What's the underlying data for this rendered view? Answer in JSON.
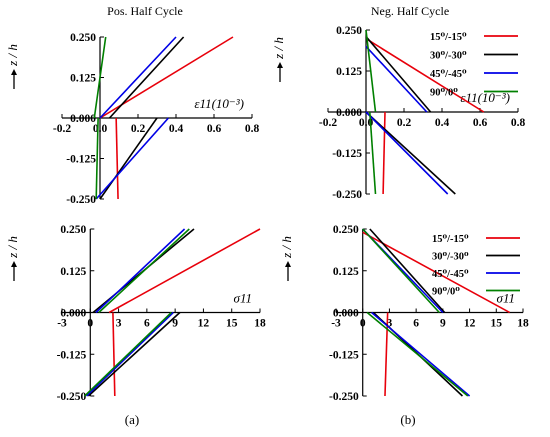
{
  "column_titles": {
    "left": "Pos. Half Cycle",
    "right": "Neg. Half Cycle"
  },
  "captions": {
    "left": "(a)",
    "right": "(b)"
  },
  "legend_panels": [
    1,
    3
  ],
  "legend_entries": [
    {
      "name": "15⁰/-15⁰",
      "color": "#e8000b"
    },
    {
      "name": "30⁰/-30⁰",
      "color": "#000000"
    },
    {
      "name": "45⁰/-45⁰",
      "color": "#0000e6"
    },
    {
      "name": "90⁰/0⁰",
      "color": "#008000"
    }
  ],
  "chart_data": [
    {
      "type": "line",
      "panel": "top-left",
      "xlabel": "ε11(10⁻³)",
      "ylabel": "z / h",
      "xlim": [
        -0.2,
        0.8
      ],
      "ylim": [
        -0.25,
        0.25
      ],
      "xticks": [
        "-0.2",
        "0.0",
        "0.2",
        "0.4",
        "0.6",
        "0.8"
      ],
      "yticks": [
        "0.250",
        "0.125",
        "0.000",
        "-0.125",
        "-0.250"
      ],
      "series": [
        {
          "name": "15⁰/-15⁰",
          "color": "#e8000b",
          "segments": [
            [
              [
                0.0,
                0.0
              ],
              [
                0.7,
                0.25
              ]
            ],
            [
              [
                0.095,
                -0.25
              ],
              [
                0.085,
                0.0
              ]
            ]
          ]
        },
        {
          "name": "30⁰/-30⁰",
          "color": "#000000",
          "segments": [
            [
              [
                0.05,
                0.0
              ],
              [
                0.44,
                0.25
              ]
            ],
            [
              [
                0.0,
                -0.25
              ],
              [
                0.3,
                0.0
              ]
            ]
          ]
        },
        {
          "name": "45⁰/-45⁰",
          "color": "#0000e6",
          "segments": [
            [
              [
                0.0,
                0.0
              ],
              [
                0.4,
                0.25
              ]
            ],
            [
              [
                -0.02,
                -0.25
              ],
              [
                0.36,
                0.0
              ]
            ]
          ]
        },
        {
          "name": "90⁰/0⁰",
          "color": "#008000",
          "segments": [
            [
              [
                -0.03,
                0.0
              ],
              [
                0.03,
                0.25
              ]
            ],
            [
              [
                -0.02,
                -0.25
              ],
              [
                -0.01,
                0.0
              ]
            ]
          ]
        }
      ]
    },
    {
      "type": "line",
      "panel": "top-right",
      "xlabel": "ε11(10⁻³)",
      "ylabel": "z / h",
      "xlim": [
        -0.2,
        0.8
      ],
      "ylim": [
        -0.25,
        0.25
      ],
      "xticks": [
        "-0.2",
        "0.0",
        "0.2",
        "0.4",
        "0.6",
        "0.8"
      ],
      "yticks": [
        "0.250",
        "0.125",
        "0.000",
        "-0.125",
        "-0.250"
      ],
      "series": [
        {
          "name": "15⁰/-15⁰",
          "color": "#e8000b",
          "segments": [
            [
              [
                0.01,
                0.22
              ],
              [
                0.62,
                0.0
              ]
            ],
            [
              [
                0.1,
                0.0
              ],
              [
                0.09,
                -0.25
              ]
            ]
          ]
        },
        {
          "name": "30⁰/-30⁰",
          "color": "#000000",
          "segments": [
            [
              [
                0.0,
                0.23
              ],
              [
                0.34,
                0.0
              ]
            ],
            [
              [
                0.0,
                0.0
              ],
              [
                0.47,
                -0.25
              ]
            ]
          ]
        },
        {
          "name": "45⁰/-45⁰",
          "color": "#0000e6",
          "segments": [
            [
              [
                0.0,
                0.2
              ],
              [
                0.32,
                0.0
              ]
            ],
            [
              [
                0.0,
                0.0
              ],
              [
                0.43,
                -0.25
              ]
            ]
          ]
        },
        {
          "name": "90⁰/0⁰",
          "color": "#008000",
          "segments": [
            [
              [
                0.0,
                0.25
              ],
              [
                0.05,
                0.0
              ]
            ],
            [
              [
                0.02,
                0.0
              ],
              [
                0.05,
                -0.25
              ]
            ]
          ]
        }
      ]
    },
    {
      "type": "line",
      "panel": "bottom-left",
      "xlabel": "σ11",
      "ylabel": "z / h",
      "xlim": [
        -3,
        18
      ],
      "ylim": [
        -0.25,
        0.25
      ],
      "xticks": [
        "-3",
        "0",
        "3",
        "6",
        "9",
        "12",
        "15",
        "18"
      ],
      "yticks": [
        "0.250",
        "0.125",
        "0.000",
        "-0.125",
        "-0.250"
      ],
      "series": [
        {
          "name": "15⁰/-15⁰",
          "color": "#e8000b",
          "segments": [
            [
              [
                2.0,
                0.0
              ],
              [
                18.0,
                0.25
              ]
            ],
            [
              [
                2.6,
                -0.25
              ],
              [
                2.4,
                0.0
              ]
            ]
          ]
        },
        {
          "name": "30⁰/-30⁰",
          "color": "#000000",
          "segments": [
            [
              [
                0.3,
                0.0
              ],
              [
                11.0,
                0.25
              ]
            ],
            [
              [
                -0.2,
                -0.25
              ],
              [
                9.5,
                0.0
              ]
            ]
          ]
        },
        {
          "name": "45⁰/-45⁰",
          "color": "#0000e6",
          "segments": [
            [
              [
                0.6,
                0.0
              ],
              [
                10.0,
                0.25
              ]
            ],
            [
              [
                -0.4,
                -0.25
              ],
              [
                8.8,
                0.0
              ]
            ]
          ]
        },
        {
          "name": "90⁰/0⁰",
          "color": "#008000",
          "segments": [
            [
              [
                0.9,
                0.0
              ],
              [
                10.5,
                0.25
              ]
            ],
            [
              [
                -0.6,
                -0.25
              ],
              [
                8.6,
                0.0
              ]
            ]
          ]
        }
      ]
    },
    {
      "type": "line",
      "panel": "bottom-right",
      "xlabel": "σ11",
      "ylabel": "z / h",
      "xlim": [
        -3,
        18
      ],
      "ylim": [
        -0.25,
        0.25
      ],
      "xticks": [
        "-3",
        "0",
        "3",
        "6",
        "9",
        "12",
        "15",
        "18"
      ],
      "yticks": [
        "0.250",
        "0.125",
        "0.000",
        "-0.125",
        "-0.250"
      ],
      "series": [
        {
          "name": "15⁰/-15⁰",
          "color": "#e8000b",
          "segments": [
            [
              [
                0.0,
                0.24
              ],
              [
                16.5,
                0.0
              ]
            ],
            [
              [
                2.8,
                0.0
              ],
              [
                2.5,
                -0.25
              ]
            ]
          ]
        },
        {
          "name": "30⁰/-30⁰",
          "color": "#000000",
          "segments": [
            [
              [
                0.8,
                0.25
              ],
              [
                9.2,
                0.0
              ]
            ],
            [
              [
                1.2,
                0.0
              ],
              [
                11.2,
                -0.25
              ]
            ]
          ]
        },
        {
          "name": "45⁰/-45⁰",
          "color": "#0000e6",
          "segments": [
            [
              [
                0.0,
                0.25
              ],
              [
                9.0,
                0.0
              ]
            ],
            [
              [
                1.0,
                0.0
              ],
              [
                12.0,
                -0.25
              ]
            ]
          ]
        },
        {
          "name": "90⁰/0⁰",
          "color": "#008000",
          "segments": [
            [
              [
                0.0,
                0.25
              ],
              [
                8.6,
                0.0
              ]
            ],
            [
              [
                0.5,
                0.0
              ],
              [
                11.8,
                -0.25
              ]
            ]
          ]
        }
      ]
    }
  ]
}
